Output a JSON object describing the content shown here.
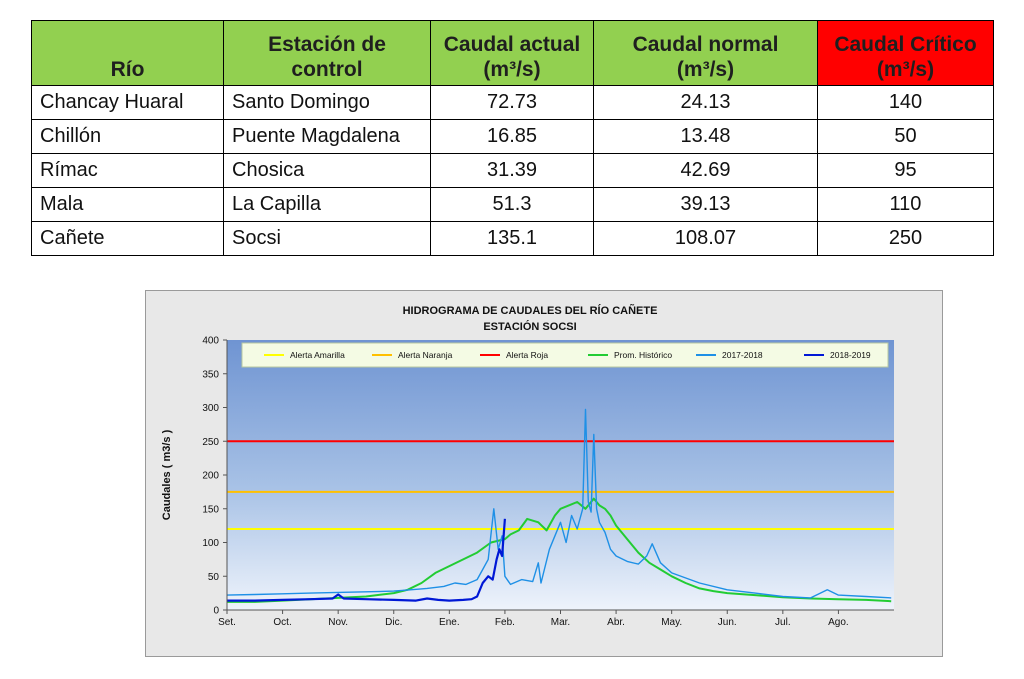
{
  "table": {
    "headers": {
      "river": "Río",
      "station_line1": "Estación de",
      "station_line2": "control",
      "current_line1": "Caudal actual",
      "current_unit": "(m³/s)",
      "normal_line1": "Caudal normal",
      "normal_unit": "(m³/s)",
      "critical_line1": "Caudal Crítico",
      "critical_unit": "(m³/s)"
    },
    "rows": [
      {
        "river": "Chancay Huaral",
        "station": "Santo Domingo",
        "current": "72.73",
        "normal": "24.13",
        "critical": "140"
      },
      {
        "river": "Chillón",
        "station": "Puente Magdalena",
        "current": "16.85",
        "normal": "13.48",
        "critical": "50"
      },
      {
        "river": "Rímac",
        "station": "Chosica",
        "current": "31.39",
        "normal": "42.69",
        "critical": "95"
      },
      {
        "river": "Mala",
        "station": "La Capilla",
        "current": "51.3",
        "normal": "39.13",
        "critical": "110"
      },
      {
        "river": "Cañete",
        "station": "Socsi",
        "current": "135.1",
        "normal": "108.07",
        "critical": "250"
      }
    ],
    "colors": {
      "header": "#92d050",
      "critical_header": "#ff0000"
    }
  },
  "chart_data": {
    "type": "line",
    "title": "HIDROGRAMA DE CAUDALES DEL RÍO CAÑETE",
    "subtitle": "ESTACIÓN  SOCSI",
    "ylabel": "Caudales ( m3/s )",
    "xlabel": "",
    "ylim": [
      0,
      400
    ],
    "yticks": [
      0,
      50,
      100,
      150,
      200,
      250,
      300,
      350,
      400
    ],
    "xlim": [
      0,
      12
    ],
    "categories": [
      "Set.",
      "Oct.",
      "Nov.",
      "Dic.",
      "Ene.",
      "Feb.",
      "Mar.",
      "Abr.",
      "May.",
      "Jun.",
      "Jul.",
      "Ago."
    ],
    "legend_position": "top",
    "grid": false,
    "thresholds": [
      {
        "name": "Alerta Amarilla",
        "value": 120,
        "color": "#ffff00"
      },
      {
        "name": "Alerta Naranja",
        "value": 175,
        "color": "#ffc000"
      },
      {
        "name": "Alerta Roja",
        "value": 250,
        "color": "#ff0000"
      }
    ],
    "series": [
      {
        "name": "Prom. Histórico",
        "color": "#22cc33",
        "x": [
          0,
          0.5,
          1,
          1.5,
          2,
          2.5,
          3,
          3.25,
          3.5,
          3.75,
          4,
          4.25,
          4.5,
          4.75,
          5,
          5.1,
          5.25,
          5.4,
          5.6,
          5.75,
          5.9,
          6,
          6.15,
          6.3,
          6.45,
          6.6,
          6.7,
          6.8,
          6.9,
          7,
          7.2,
          7.4,
          7.6,
          7.8,
          8,
          8.25,
          8.5,
          8.75,
          9,
          9.5,
          10,
          10.5,
          11,
          11.5,
          11.95
        ],
        "y": [
          12,
          12,
          14,
          16,
          18,
          20,
          25,
          30,
          40,
          55,
          65,
          75,
          85,
          100,
          105,
          112,
          118,
          135,
          130,
          118,
          140,
          150,
          155,
          160,
          150,
          165,
          155,
          150,
          140,
          125,
          105,
          85,
          70,
          60,
          50,
          40,
          32,
          28,
          25,
          22,
          19,
          17,
          16,
          15,
          13
        ]
      },
      {
        "name": "2017-2018",
        "color": "#1e90e6",
        "x": [
          0,
          0.5,
          1,
          1.5,
          2,
          2.5,
          3,
          3.3,
          3.6,
          3.9,
          4.1,
          4.3,
          4.5,
          4.6,
          4.7,
          4.8,
          4.88,
          4.95,
          5,
          5.1,
          5.3,
          5.5,
          5.6,
          5.65,
          5.8,
          6,
          6.1,
          6.2,
          6.3,
          6.4,
          6.45,
          6.5,
          6.55,
          6.6,
          6.65,
          6.7,
          6.8,
          6.9,
          7,
          7.2,
          7.4,
          7.55,
          7.65,
          7.8,
          8,
          8.5,
          9,
          9.5,
          10,
          10.5,
          10.8,
          11,
          11.5,
          11.95
        ],
        "y": [
          22,
          23,
          24,
          25,
          26,
          27,
          28,
          30,
          32,
          35,
          40,
          38,
          45,
          60,
          75,
          150,
          90,
          110,
          50,
          38,
          45,
          42,
          70,
          40,
          90,
          130,
          100,
          140,
          120,
          150,
          297,
          160,
          145,
          260,
          150,
          130,
          115,
          90,
          80,
          72,
          68,
          80,
          98,
          70,
          55,
          40,
          30,
          25,
          20,
          18,
          30,
          22,
          20,
          18
        ]
      },
      {
        "name": "2018-2019",
        "color": "#0018d6",
        "x": [
          0,
          0.5,
          1,
          1.5,
          1.9,
          2,
          2.1,
          2.5,
          3,
          3.4,
          3.6,
          3.8,
          4,
          4.25,
          4.4,
          4.5,
          4.6,
          4.7,
          4.78,
          4.85,
          4.9,
          4.95,
          5.0
        ],
        "y": [
          14,
          14,
          15,
          16,
          17,
          23,
          17,
          16,
          15,
          14,
          17,
          15,
          14,
          15,
          16,
          20,
          40,
          50,
          45,
          75,
          90,
          80,
          135.1
        ]
      }
    ]
  }
}
